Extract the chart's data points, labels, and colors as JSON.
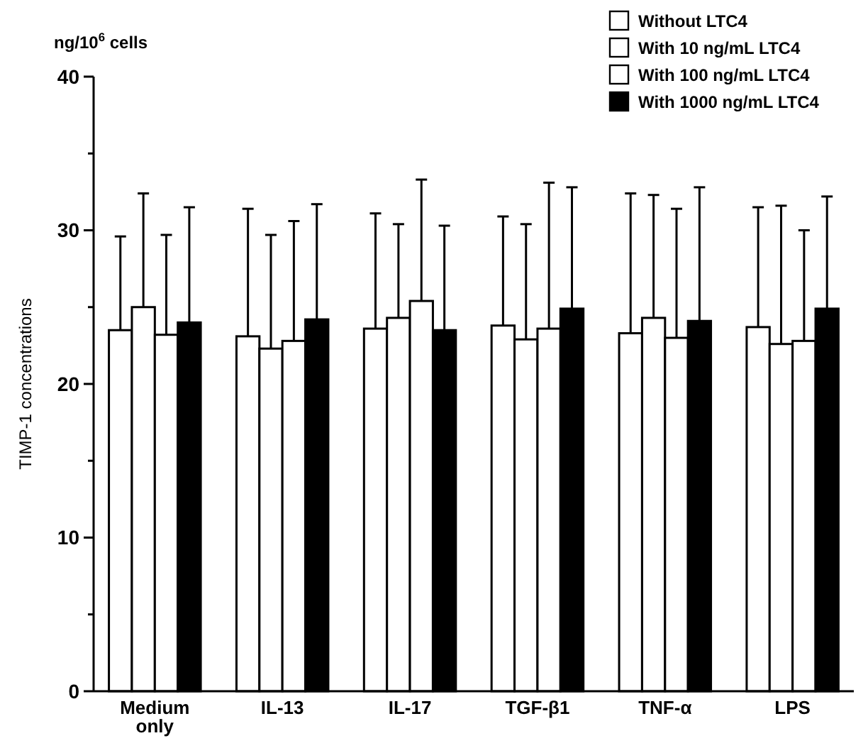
{
  "chart_data": {
    "type": "bar",
    "ylabel": "TIMP-1 concentrations",
    "annotations": [
      "ng/10$^{6}$ cells"
    ],
    "categories": [
      "Medium only",
      "IL-13",
      "IL-17",
      "TGF-β1",
      "TNF-α",
      "LPS"
    ],
    "series": [
      {
        "name": "Without LTC4",
        "color": "#ffffff",
        "values": [
          23.5,
          23.1,
          23.6,
          23.8,
          23.3,
          23.7
        ],
        "errors": [
          [
            23.5,
            29.6
          ],
          [
            23.1,
            31.4
          ],
          [
            23.6,
            31.1
          ],
          [
            23.8,
            30.9
          ],
          [
            23.3,
            32.4
          ],
          [
            23.7,
            31.5
          ]
        ]
      },
      {
        "name": "With 10 ng/mL LTC4",
        "color": "#ffffff",
        "values": [
          25,
          22.3,
          24.3,
          22.9,
          24.3,
          22.6
        ],
        "errors": [
          [
            25,
            32.4
          ],
          [
            22.3,
            29.7
          ],
          [
            24.3,
            30.4
          ],
          [
            22.9,
            30.4
          ],
          [
            24.3,
            32.3
          ],
          [
            22.6,
            31.6
          ]
        ]
      },
      {
        "name": "With 100 ng/mL LTC4",
        "color": "#ffffff",
        "values": [
          23.2,
          22.8,
          25.4,
          23.6,
          23,
          22.8
        ],
        "errors": [
          [
            23.2,
            29.7
          ],
          [
            22.8,
            30.6
          ],
          [
            25.4,
            33.3
          ],
          [
            23.6,
            33.1
          ],
          [
            23,
            31.4
          ],
          [
            22.8,
            30
          ]
        ]
      },
      {
        "name": "With 1000 ng/mL LTC4",
        "color": "#000000",
        "values": [
          24,
          24.2,
          23.5,
          24.9,
          24.1,
          24.9
        ],
        "errors": [
          [
            24,
            31.5
          ],
          [
            24.2,
            31.7
          ],
          [
            23.5,
            30.3
          ],
          [
            24.9,
            32.8
          ],
          [
            24.1,
            32.8
          ],
          [
            24.9,
            32.2
          ]
        ]
      }
    ],
    "ylim": [
      0,
      40
    ],
    "yticks": [
      0,
      {
        "value": 5,
        "label": null
      },
      10,
      {
        "value": 15,
        "label": null
      },
      20,
      {
        "value": 25,
        "label": null
      },
      30,
      {
        "value": 35,
        "label": null
      },
      40
    ],
    "legend": "top right"
  }
}
